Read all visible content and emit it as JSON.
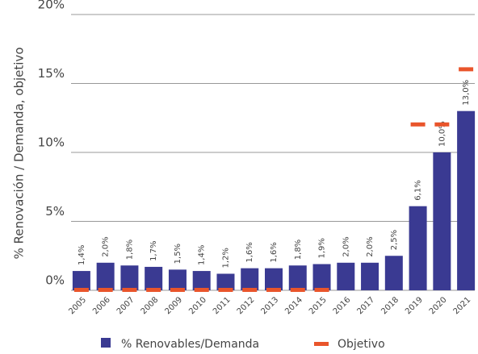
{
  "chart_data": {
    "type": "bar",
    "y_label": "% Renovación / Demanda, objetivo",
    "categories": [
      "2005",
      "2006",
      "2007",
      "2008",
      "2009",
      "2010",
      "2011",
      "2012",
      "2013",
      "2014",
      "2015",
      "2016",
      "2017",
      "2018",
      "2019",
      "2020",
      "2021"
    ],
    "series": [
      {
        "name": "% Renovables/Demanda",
        "color": "#3a3a92",
        "values": [
          1.4,
          2.0,
          1.8,
          1.7,
          1.5,
          1.4,
          1.2,
          1.6,
          1.6,
          1.8,
          1.9,
          2.0,
          2.0,
          2.5,
          6.1,
          10.0,
          13.0
        ],
        "value_labels": [
          "1,4%",
          "2,0%",
          "1,8%",
          "1,7%",
          "1,5%",
          "1,4%",
          "1,2%",
          "1,6%",
          "1,6%",
          "1,8%",
          "1,9%",
          "2,0%",
          "2,0%",
          "2,5%",
          "6,1%",
          "10,0%",
          "13,0%"
        ]
      },
      {
        "name": "Objetivo",
        "color": "#e9552b",
        "values": [
          0,
          0,
          0,
          0,
          0,
          0,
          0,
          0,
          0,
          0,
          0,
          null,
          null,
          null,
          12,
          12,
          16
        ]
      }
    ],
    "ylim": [
      0,
      20
    ],
    "yticks": [
      {
        "value": 0,
        "label": "0%"
      },
      {
        "value": 5,
        "label": "5%"
      },
      {
        "value": 10,
        "label": "10%"
      },
      {
        "value": 15,
        "label": "15%"
      },
      {
        "value": 20,
        "label": "20%"
      }
    ],
    "grid": true
  }
}
